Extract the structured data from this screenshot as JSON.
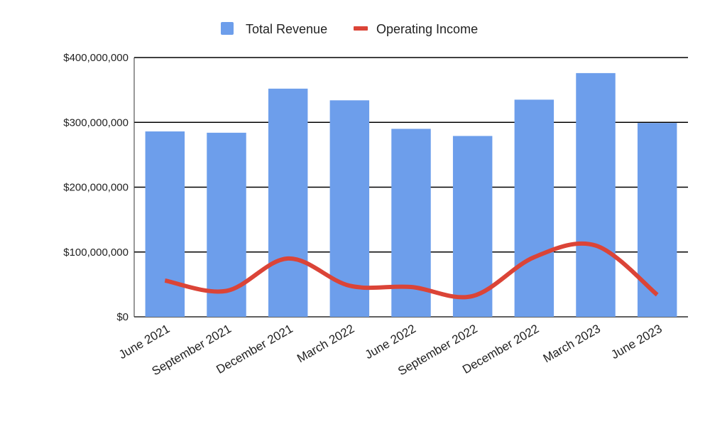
{
  "chart_data": {
    "type": "bar",
    "categories": [
      "June 2021",
      "September 2021",
      "December 2021",
      "March 2022",
      "June 2022",
      "September 2022",
      "December 2022",
      "March 2023",
      "June 2023"
    ],
    "series": [
      {
        "name": "Total Revenue",
        "type": "bar",
        "color": "#6d9eeb",
        "values": [
          286000000,
          284000000,
          352000000,
          334000000,
          290000000,
          279000000,
          335000000,
          376000000,
          299000000
        ]
      },
      {
        "name": "Operating Income",
        "type": "line",
        "color": "#db4437",
        "values": [
          56000000,
          40000000,
          90000000,
          48000000,
          46000000,
          32000000,
          92000000,
          110000000,
          34000000
        ]
      }
    ],
    "y_ticks": [
      "$0",
      "$100,000,000",
      "$200,000,000",
      "$300,000,000",
      "$400,000,000"
    ],
    "ylim": [
      0,
      400000000
    ],
    "grid": true,
    "legend_position": "top-center",
    "title": "",
    "xlabel": "",
    "ylabel": ""
  }
}
